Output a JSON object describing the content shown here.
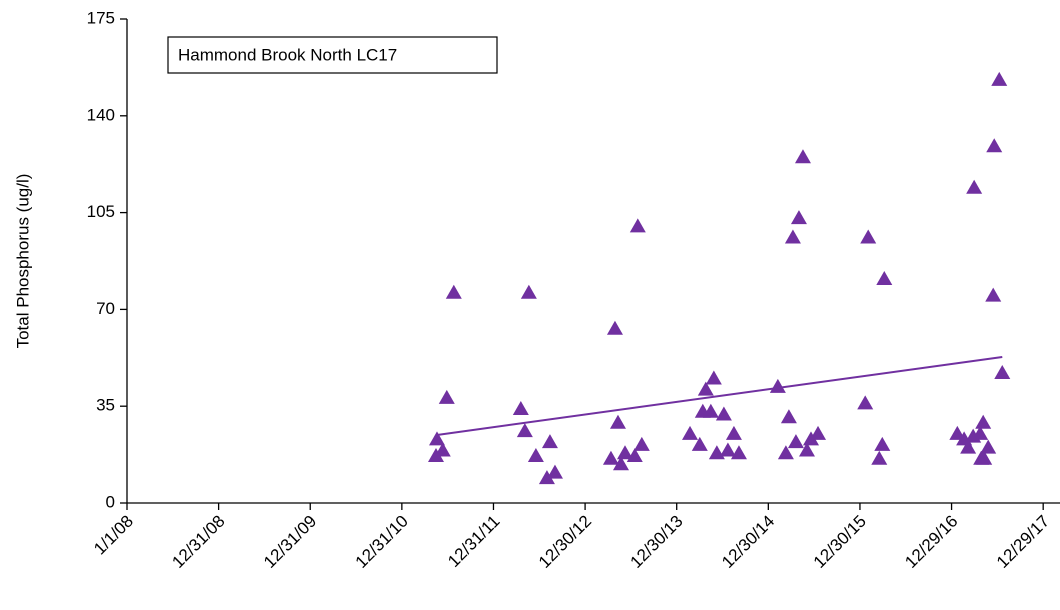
{
  "chart_data": {
    "type": "scatter",
    "title": "Hammond Brook North LC17",
    "y_label": "Total Phosphorus (ug/l)",
    "xlim": [
      "2008-01-01",
      "2018-03-06"
    ],
    "xticks": [
      {
        "value": "2008-01-01",
        "label": "1/1/08"
      },
      {
        "value": "2008-12-31",
        "label": "12/31/08"
      },
      {
        "value": "2009-12-31",
        "label": "12/31/09"
      },
      {
        "value": "2010-12-31",
        "label": "12/31/10"
      },
      {
        "value": "2011-12-31",
        "label": "12/31/11"
      },
      {
        "value": "2012-12-30",
        "label": "12/30/12"
      },
      {
        "value": "2013-12-30",
        "label": "12/30/13"
      },
      {
        "value": "2014-12-30",
        "label": "12/30/14"
      },
      {
        "value": "2015-12-30",
        "label": "12/30/15"
      },
      {
        "value": "2016-12-29",
        "label": "12/29/16"
      },
      {
        "value": "2017-12-29",
        "label": "12/29/17"
      }
    ],
    "ylim": [
      0,
      175
    ],
    "yticks": [
      0,
      35,
      70,
      105,
      140,
      175
    ],
    "grid": false,
    "points": {
      "color": "#7030a0",
      "x": [
        "2011-05-20",
        "2011-05-16",
        "2011-06-12",
        "2011-06-28",
        "2011-07-26",
        "2012-04-18",
        "2012-05-04",
        "2012-05-20",
        "2012-06-17",
        "2012-07-31",
        "2012-08-12",
        "2012-09-01",
        "2013-04-28",
        "2013-05-10",
        "2013-04-12",
        "2013-05-22",
        "2013-06-07",
        "2013-07-16",
        "2013-08-13",
        "2013-07-28",
        "2014-02-21",
        "2014-04-01",
        "2014-04-13",
        "2014-04-25",
        "2014-05-15",
        "2014-05-27",
        "2014-06-08",
        "2014-07-06",
        "2014-07-22",
        "2014-08-15",
        "2014-09-04",
        "2015-02-06",
        "2015-03-10",
        "2015-03-22",
        "2015-04-07",
        "2015-04-19",
        "2015-05-01",
        "2015-05-17",
        "2015-06-02",
        "2015-06-18",
        "2015-07-16",
        "2016-01-20",
        "2016-02-01",
        "2016-03-16",
        "2016-03-28",
        "2016-04-05",
        "2017-01-21",
        "2017-02-17",
        "2017-03-05",
        "2017-03-25",
        "2017-03-29",
        "2017-04-22",
        "2017-04-26",
        "2017-05-08",
        "2017-05-04",
        "2017-05-24",
        "2017-06-13",
        "2017-06-17",
        "2017-07-07",
        "2017-07-19"
      ],
      "values": [
        23,
        17,
        19,
        38,
        76,
        34,
        26,
        76,
        17,
        9,
        22,
        11,
        63,
        29,
        16,
        14,
        18,
        17,
        21,
        100,
        25,
        21,
        33,
        41,
        33,
        45,
        18,
        32,
        19,
        25,
        18,
        42,
        18,
        31,
        96,
        22,
        103,
        125,
        19,
        23,
        25,
        36,
        96,
        16,
        21,
        81,
        25,
        23,
        20,
        24,
        114,
        25,
        16,
        16,
        29,
        20,
        75,
        129,
        153,
        47
      ]
    },
    "trendline": {
      "color": "#7030a0",
      "x": [
        "2011-05-20",
        "2017-07-19"
      ],
      "values": [
        24.6,
        52.8
      ]
    }
  }
}
